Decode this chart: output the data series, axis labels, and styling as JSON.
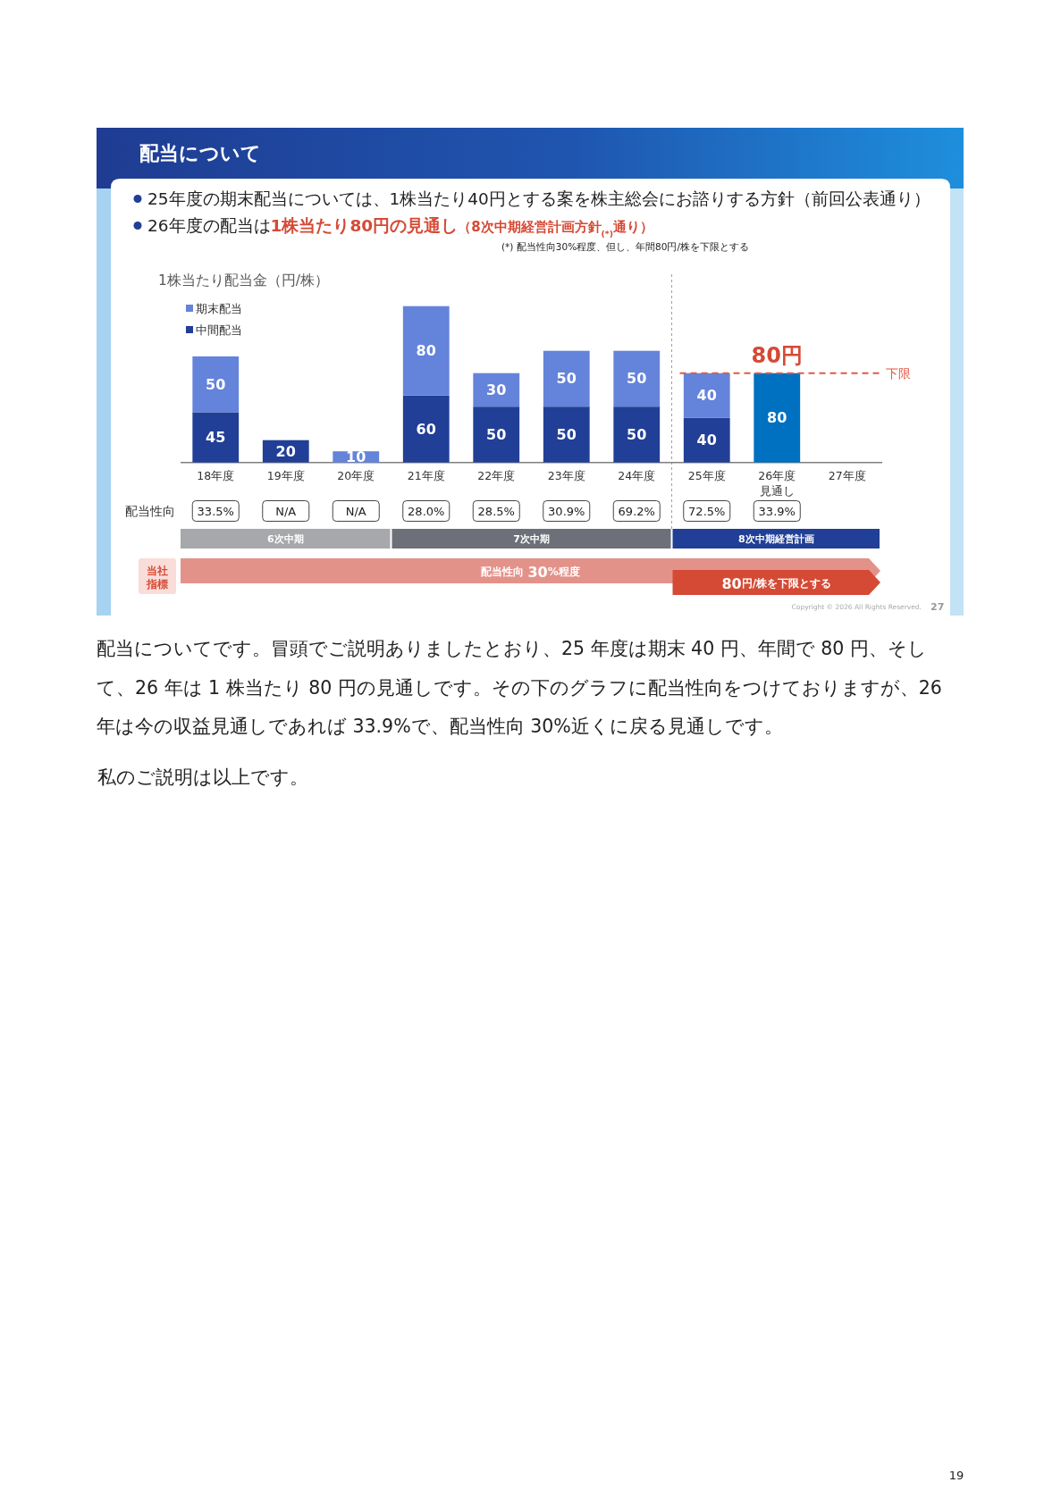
{
  "chart_data": {
    "type": "bar",
    "title": "配当について",
    "ylabel": "1株当たり配当金（円/株）",
    "categories": [
      "18年度",
      "19年度",
      "20年度",
      "21年度",
      "22年度",
      "23年度",
      "24年度",
      "25年度",
      "26年度見通し",
      "27年度"
    ],
    "stacked": true,
    "series": [
      {
        "name": "中間配当",
        "color": "#213f96",
        "values": [
          45,
          20,
          null,
          60,
          50,
          50,
          50,
          40,
          null,
          null
        ]
      },
      {
        "name": "期末配当",
        "color": "#6483da",
        "values": [
          50,
          null,
          10,
          80,
          30,
          50,
          50,
          40,
          null,
          null
        ]
      },
      {
        "color": "#0070c0",
        "values": [
          null,
          null,
          null,
          null,
          null,
          null,
          null,
          null,
          80,
          null
        ]
      }
    ],
    "data_labels": true,
    "legend": "top left",
    "ref_lines": [
      {
        "axis": "y",
        "value": 80,
        "label": "下限",
        "color": "#e05a45",
        "line_style": "dashed"
      }
    ],
    "annotations": [
      "25年度の期末配当については、1株当たり40円とする案を株主総会にお諮りする方針（前回公表通り）",
      "26年度の配当は",
      "1株当たり80円の見通し",
      "（8次中期経営計画方針$_{(*)}$通り）",
      "(*) 配当性向30%程度、但し、年間80円/株を下限とする",
      "配当性向",
      "33.5%",
      "N/A",
      "N/A",
      "28.0%",
      "28.5%",
      "30.9%",
      "69.2%",
      "72.5%",
      "33.9%",
      {
        "text": "80円",
        "x": "26年度見通し",
        "y": 80
      },
      "6次中期",
      "7次中期",
      "8次中期経営計画",
      "当社指標",
      "配当性向 30%程度",
      "80円/株を下限とする",
      "Copyright © 2026 All Rights Reserved.",
      "27",
      "配当についてです。冒頭でご説明ありましたとおり、25 年度は期末 40 円、年間で 80 円、そして、26 年は 1 株当たり 80 円の見通しです。その下のグラフに配当性向をつけておりますが、26 年は今の収益見通しであれば 33.9%で、配当性向 30%近くに戻る見通しです。",
      "私のご説明は以上です。",
      "19"
    ]
  }
}
